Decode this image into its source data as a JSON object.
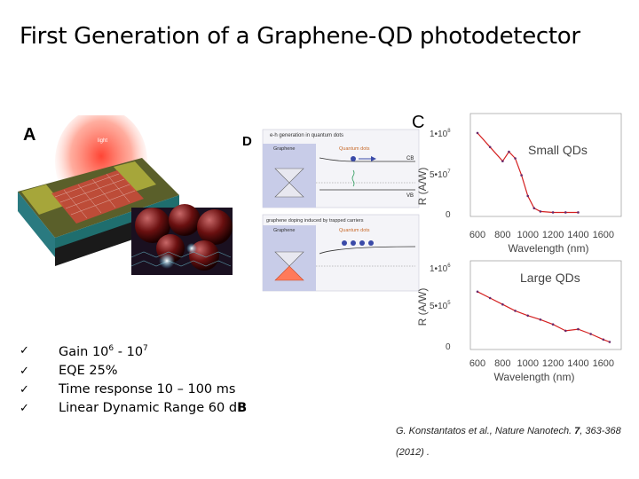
{
  "slide": {
    "title": "First Generation of a Graphene-QD photodetector"
  },
  "panel_a": {
    "letter": "A",
    "label_light": "light"
  },
  "panel_d": {
    "letter": "D",
    "top_caption": "e-h generation in quantum dots",
    "top_graphene": "Graphene",
    "top_qd": "Quantum dots",
    "cb": "CB",
    "vb": "VB",
    "bottom_caption": "graphene doping induced by trapped carriers",
    "bottom_graphene": "Graphene",
    "bottom_qd": "Quantum dots"
  },
  "panel_c": {
    "letter": "C",
    "xticks": [
      "600",
      "800",
      "1000",
      "1200",
      "1400",
      "1600"
    ],
    "xlabel": "Wavelength (nm)",
    "ylabel": "R (A/W)",
    "top": {
      "title": "Small QDs",
      "yt_top": "1•10",
      "yt_top_exp": "8",
      "yt_mid": "5•10",
      "yt_mid_exp": "7",
      "yt_bot": "0"
    },
    "bottom": {
      "title": "Large  QDs",
      "yt_top": "1•10",
      "yt_top_exp": "6",
      "yt_mid": "5•10",
      "yt_mid_exp": "5",
      "yt_bot": "0"
    }
  },
  "bullets": [
    {
      "mark": "✓",
      "text_before": "Gain 10",
      "sup1": "6",
      "text_mid": " - 10",
      "sup2": "7"
    },
    {
      "mark": "✓",
      "text": "EQE 25%"
    },
    {
      "mark": "✓",
      "text": "Time response 10 – 100 ms"
    },
    {
      "mark": "✓",
      "text": "Linear Dynamic Range 60 d",
      "text_bold": "B"
    }
  ],
  "citation": {
    "text_before": "G. Konstantatos et al., Nature Nanotech. ",
    "volume": "7",
    "text_after": ", 363-368 (2012) ."
  },
  "chart_data": [
    {
      "type": "line",
      "title": "Small QDs",
      "xlabel": "Wavelength (nm)",
      "ylabel": "R (A/W)",
      "xlim": [
        600,
        1700
      ],
      "ylim": [
        0,
        100000000
      ],
      "x": [
        600,
        700,
        800,
        850,
        900,
        950,
        1000,
        1050,
        1100,
        1200,
        1300,
        1400
      ],
      "values": [
        85000000,
        70000000,
        55000000,
        65000000,
        58000000,
        40000000,
        18000000,
        5000000,
        1500000,
        500000,
        500000,
        500000
      ]
    },
    {
      "type": "line",
      "title": "Large  QDs",
      "xlabel": "Wavelength (nm)",
      "ylabel": "R (A/W)",
      "xlim": [
        600,
        1700
      ],
      "ylim": [
        0,
        1000000
      ],
      "x": [
        600,
        700,
        800,
        900,
        1000,
        1100,
        1200,
        1300,
        1400,
        1500,
        1600,
        1650
      ],
      "values": [
        680000,
        600000,
        520000,
        440000,
        380000,
        330000,
        270000,
        190000,
        210000,
        150000,
        80000,
        50000
      ]
    }
  ]
}
